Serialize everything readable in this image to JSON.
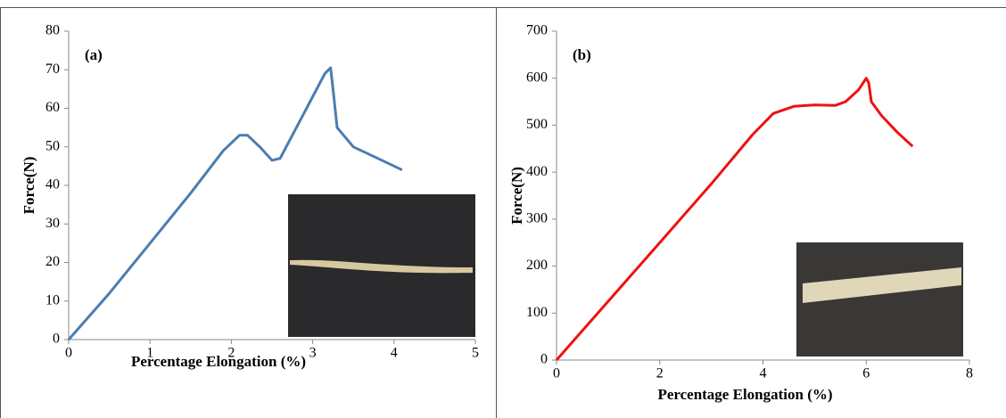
{
  "chart_data": [
    {
      "type": "line",
      "title": "(a)",
      "xlabel": "Percentage Elongation (%)",
      "ylabel": "Force(N)",
      "x": [
        0,
        0.5,
        1,
        1.5,
        1.9,
        2.1,
        2.2,
        2.35,
        2.5,
        2.6,
        2.8,
        3.0,
        3.15,
        3.22,
        3.25,
        3.3,
        3.5,
        3.8,
        4.1
      ],
      "values": [
        0,
        12,
        25,
        38,
        49,
        53,
        53,
        50,
        46.5,
        47,
        55,
        63,
        69,
        70.5,
        65,
        55,
        50,
        47,
        44
      ],
      "color": "#4a7eb0",
      "xlim": [
        0,
        5
      ],
      "ylim": [
        0,
        80
      ],
      "xticks": [
        0,
        1,
        2,
        3,
        4,
        5
      ],
      "yticks": [
        0,
        10,
        20,
        30,
        40,
        50,
        60,
        70,
        80
      ]
    },
    {
      "type": "line",
      "title": "(b)",
      "xlabel": "Percentage Elongation (%)",
      "ylabel": "Force(N)",
      "x": [
        0,
        1,
        2,
        3,
        3.8,
        4.2,
        4.6,
        5,
        5.4,
        5.6,
        5.85,
        6,
        6.05,
        6.1,
        6.3,
        6.6,
        6.9
      ],
      "values": [
        0,
        125,
        250,
        375,
        480,
        525,
        540,
        543,
        542,
        550,
        575,
        600,
        590,
        550,
        520,
        485,
        455
      ],
      "color": "#ee1111",
      "xlim": [
        0,
        8
      ],
      "ylim": [
        0,
        700
      ],
      "xticks": [
        0,
        2,
        4,
        6,
        8
      ],
      "yticks": [
        0,
        100,
        200,
        300,
        400,
        500,
        600,
        700
      ]
    }
  ]
}
